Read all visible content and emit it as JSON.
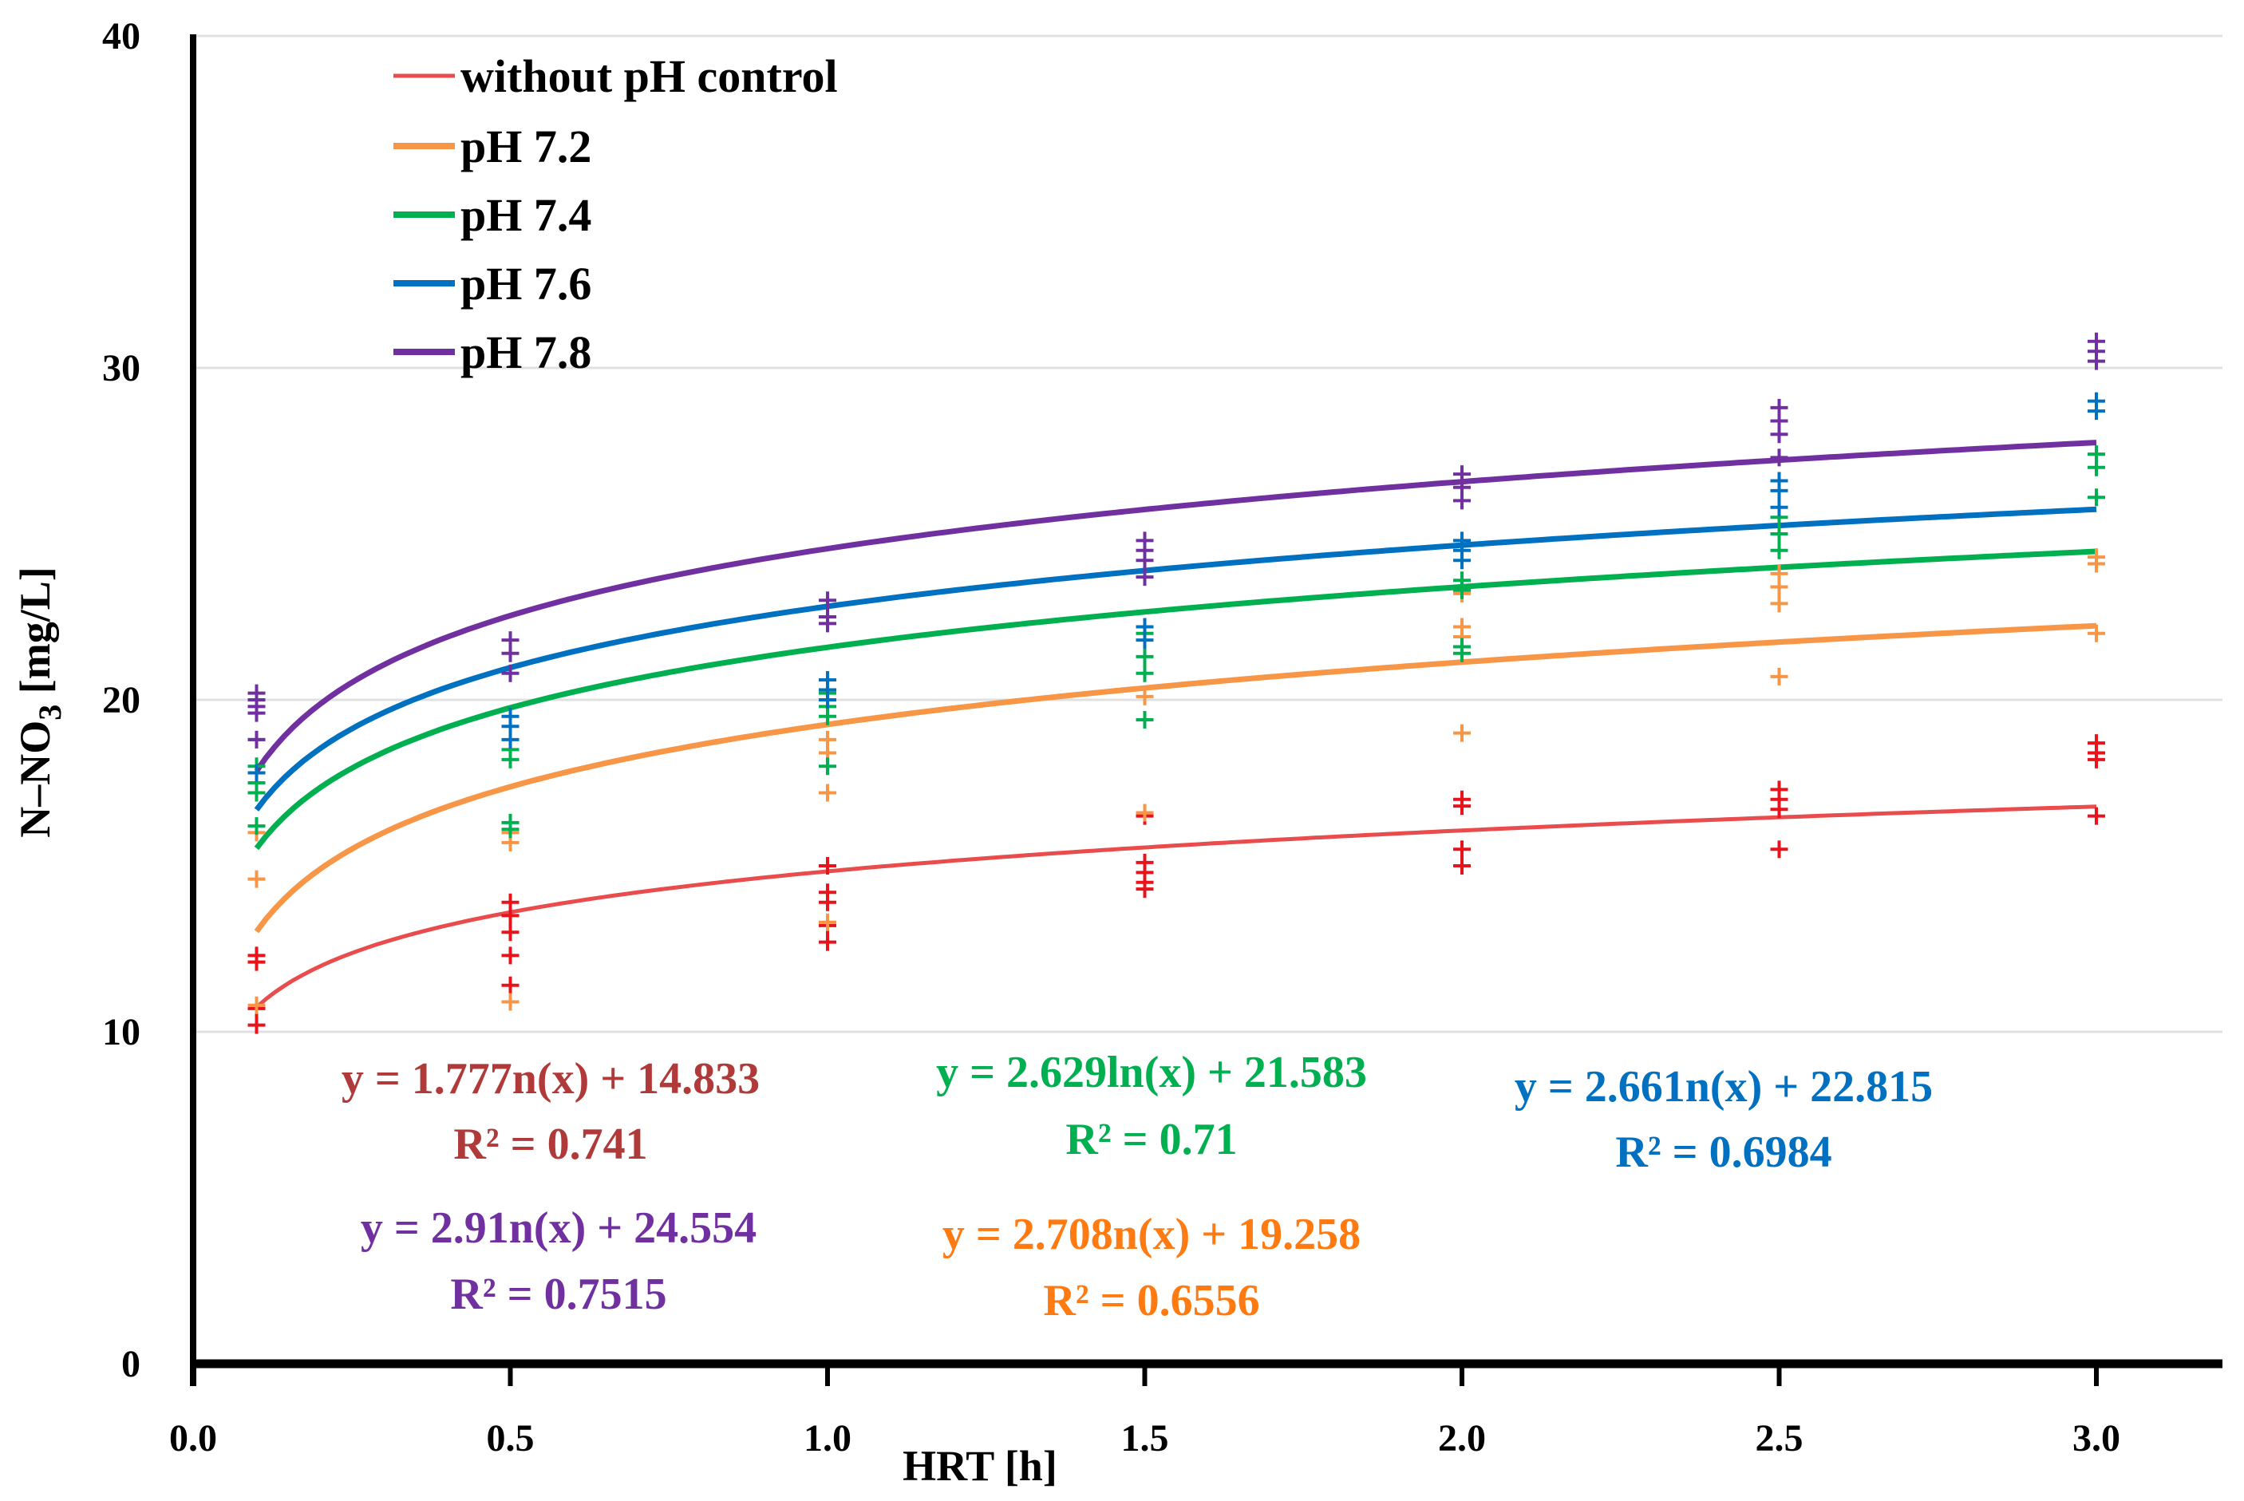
{
  "chart_data": {
    "type": "scatter",
    "title": "",
    "xlabel": "HRT [h]",
    "ylabel_main": "N–NO",
    "ylabel_sub": "3",
    "ylabel_unit": " [mg/L]",
    "xlim": [
      0,
      3.2
    ],
    "ylim": [
      0,
      40
    ],
    "xticks": [
      "0.0",
      "0.5",
      "1.0",
      "1.5",
      "2.0",
      "2.5",
      "3.0"
    ],
    "yticks": [
      "0",
      "10",
      "20",
      "30",
      "40"
    ],
    "grid": "horizontal",
    "legend_position": "top-left",
    "series": [
      {
        "name": "without pH control",
        "color": "#e84c4c",
        "marker_color": "#e8141c",
        "eq_color": "#b03a3a",
        "a": 1.777,
        "b": 14.833,
        "equation": "y = 1.777n(x) + 14.833",
        "r2": "R² = 0.741",
        "points": [
          [
            0.1,
            12.1
          ],
          [
            0.1,
            12.3
          ],
          [
            0.1,
            10.7
          ],
          [
            0.1,
            10.2
          ],
          [
            0.5,
            13.9
          ],
          [
            0.5,
            13.5
          ],
          [
            0.5,
            13.0
          ],
          [
            0.5,
            12.3
          ],
          [
            0.5,
            11.4
          ],
          [
            1.0,
            15.0
          ],
          [
            1.0,
            14.2
          ],
          [
            1.0,
            13.9
          ],
          [
            1.0,
            13.2
          ],
          [
            1.0,
            12.7
          ],
          [
            1.5,
            16.5
          ],
          [
            1.5,
            15.1
          ],
          [
            1.5,
            14.8
          ],
          [
            1.5,
            14.5
          ],
          [
            1.5,
            14.3
          ],
          [
            2.0,
            17.0
          ],
          [
            2.0,
            16.8
          ],
          [
            2.0,
            15.5
          ],
          [
            2.0,
            15.0
          ],
          [
            2.5,
            17.3
          ],
          [
            2.5,
            17.0
          ],
          [
            2.5,
            16.7
          ],
          [
            2.5,
            15.5
          ],
          [
            3.0,
            18.7
          ],
          [
            3.0,
            18.4
          ],
          [
            3.0,
            18.2
          ],
          [
            3.0,
            16.5
          ]
        ]
      },
      {
        "name": "pH 7.2",
        "color": "#f79646",
        "marker_color": "#f79646",
        "eq_color": "#ff7a10",
        "a": 2.708,
        "b": 19.258,
        "equation": "y = 2.708n(x) + 19.258",
        "r2": "R² = 0.6556",
        "points": [
          [
            0.1,
            16.0
          ],
          [
            0.1,
            14.6
          ],
          [
            0.1,
            10.8
          ],
          [
            0.5,
            16.0
          ],
          [
            0.5,
            15.7
          ],
          [
            0.5,
            10.9
          ],
          [
            1.0,
            18.8
          ],
          [
            1.0,
            18.4
          ],
          [
            1.0,
            17.2
          ],
          [
            1.0,
            13.3
          ],
          [
            1.5,
            16.6
          ],
          [
            1.5,
            20.1
          ],
          [
            2.0,
            23.2
          ],
          [
            2.0,
            22.2
          ],
          [
            2.0,
            21.9
          ],
          [
            2.0,
            19.0
          ],
          [
            2.5,
            23.8
          ],
          [
            2.5,
            23.4
          ],
          [
            2.5,
            22.9
          ],
          [
            2.5,
            20.7
          ],
          [
            3.0,
            24.3
          ],
          [
            3.0,
            24.1
          ],
          [
            3.0,
            22.0
          ]
        ]
      },
      {
        "name": "pH 7.4",
        "color": "#00b050",
        "marker_color": "#00b050",
        "eq_color": "#00b050",
        "a": 2.629,
        "b": 21.583,
        "equation": "y = 2.629ln(x) + 21.583",
        "r2": "R² = 0.71",
        "points": [
          [
            0.1,
            18.0
          ],
          [
            0.1,
            17.5
          ],
          [
            0.1,
            17.2
          ],
          [
            0.1,
            16.2
          ],
          [
            0.5,
            18.5
          ],
          [
            0.5,
            18.2
          ],
          [
            0.5,
            16.3
          ],
          [
            0.5,
            16.1
          ],
          [
            1.0,
            20.2
          ],
          [
            1.0,
            19.8
          ],
          [
            1.0,
            19.5
          ],
          [
            1.0,
            18.0
          ],
          [
            1.5,
            22.0
          ],
          [
            1.5,
            21.3
          ],
          [
            1.5,
            20.8
          ],
          [
            1.5,
            19.4
          ],
          [
            2.0,
            23.6
          ],
          [
            2.0,
            23.3
          ],
          [
            2.0,
            21.6
          ],
          [
            2.0,
            21.4
          ],
          [
            2.5,
            25.5
          ],
          [
            2.5,
            25.0
          ],
          [
            2.5,
            24.5
          ],
          [
            3.0,
            27.4
          ],
          [
            3.0,
            27.0
          ],
          [
            3.0,
            26.1
          ]
        ]
      },
      {
        "name": "pH 7.6",
        "color": "#0070c0",
        "marker_color": "#0070c0",
        "eq_color": "#0070c0",
        "a": 2.661,
        "b": 22.815,
        "equation": "y = 2.661n(x) + 22.815",
        "r2": "R² = 0.6984",
        "points": [
          [
            0.1,
            18.8
          ],
          [
            0.1,
            17.8
          ],
          [
            0.5,
            19.5
          ],
          [
            0.5,
            19.2
          ],
          [
            0.5,
            18.8
          ],
          [
            1.0,
            20.6
          ],
          [
            1.0,
            20.3
          ],
          [
            1.0,
            20.0
          ],
          [
            1.5,
            22.2
          ],
          [
            1.5,
            21.8
          ],
          [
            2.0,
            24.8
          ],
          [
            2.0,
            24.5
          ],
          [
            2.0,
            24.2
          ],
          [
            2.5,
            26.6
          ],
          [
            2.5,
            26.3
          ],
          [
            2.5,
            25.8
          ],
          [
            3.0,
            29.0
          ],
          [
            3.0,
            28.7
          ]
        ]
      },
      {
        "name": "pH 7.8",
        "color": "#7030a0",
        "marker_color": "#7030a0",
        "eq_color": "#7030a0",
        "a": 2.91,
        "b": 24.554,
        "equation": "y = 2.91n(x) + 24.554",
        "r2": "R² = 0.7515",
        "points": [
          [
            0.1,
            20.2
          ],
          [
            0.1,
            20.0
          ],
          [
            0.1,
            19.8
          ],
          [
            0.1,
            19.6
          ],
          [
            0.1,
            18.8
          ],
          [
            0.5,
            21.8
          ],
          [
            0.5,
            21.4
          ],
          [
            0.5,
            20.8
          ],
          [
            1.0,
            23.0
          ],
          [
            1.0,
            22.5
          ],
          [
            1.0,
            22.3
          ],
          [
            1.5,
            24.8
          ],
          [
            1.5,
            24.5
          ],
          [
            1.5,
            24.2
          ],
          [
            1.5,
            23.7
          ],
          [
            2.0,
            26.8
          ],
          [
            2.0,
            26.4
          ],
          [
            2.0,
            26.0
          ],
          [
            2.5,
            28.8
          ],
          [
            2.5,
            28.4
          ],
          [
            2.5,
            28.0
          ],
          [
            2.5,
            27.3
          ],
          [
            3.0,
            30.8
          ],
          [
            3.0,
            30.5
          ],
          [
            3.0,
            30.2
          ]
        ]
      }
    ]
  }
}
